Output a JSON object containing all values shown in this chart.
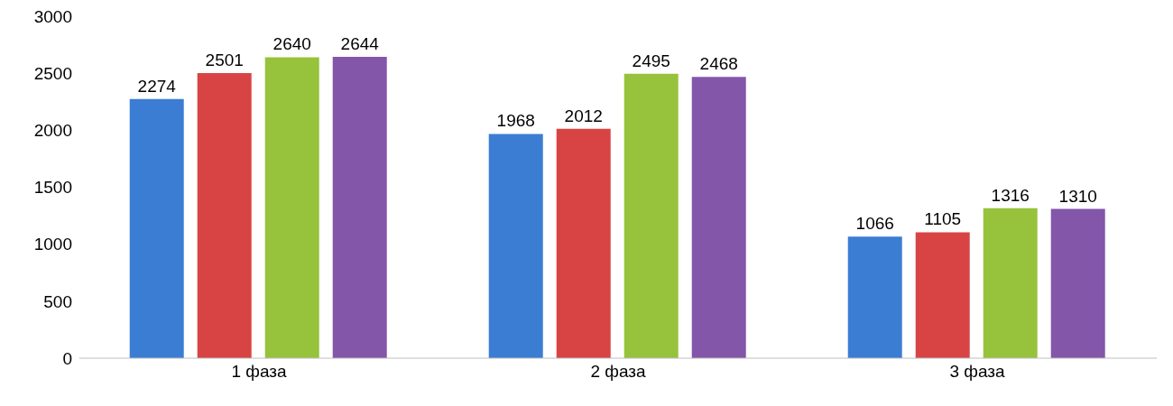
{
  "chart_data": {
    "type": "bar",
    "categories": [
      "1 фаза",
      "2 фаза",
      "3 фаза"
    ],
    "series": [
      {
        "color": "#3c7dd4",
        "values": [
          2274,
          1968,
          1066
        ]
      },
      {
        "color": "#d84444",
        "values": [
          2501,
          2012,
          1105
        ]
      },
      {
        "color": "#97c23c",
        "values": [
          2640,
          2495,
          1316
        ]
      },
      {
        "color": "#8356aa",
        "values": [
          2644,
          2468,
          1310
        ]
      }
    ],
    "ylim": [
      0,
      3000
    ],
    "yticks": [
      0,
      500,
      1000,
      1500,
      2000,
      2500,
      3000
    ],
    "grid": false,
    "legend": false,
    "data_labels": true
  }
}
